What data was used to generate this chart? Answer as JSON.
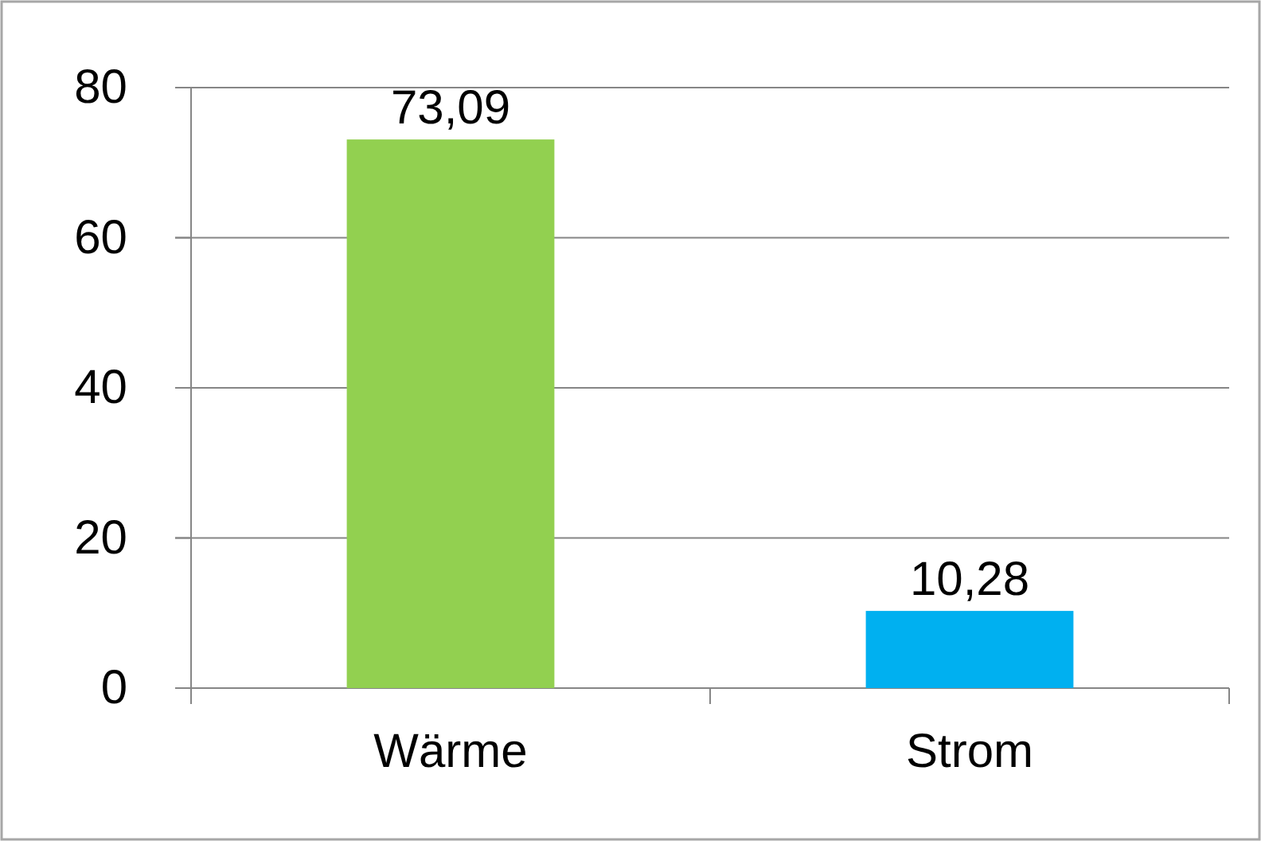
{
  "chart_data": {
    "type": "bar",
    "categories": [
      "Wärme",
      "Strom"
    ],
    "values": [
      73.09,
      10.28
    ],
    "colors": [
      "#92d050",
      "#00b0f0"
    ],
    "value_labels": [
      "73,09",
      "10,28"
    ],
    "ylim": [
      0,
      80
    ],
    "yticks": [
      0,
      20,
      40,
      60,
      80
    ],
    "grid": "y"
  }
}
